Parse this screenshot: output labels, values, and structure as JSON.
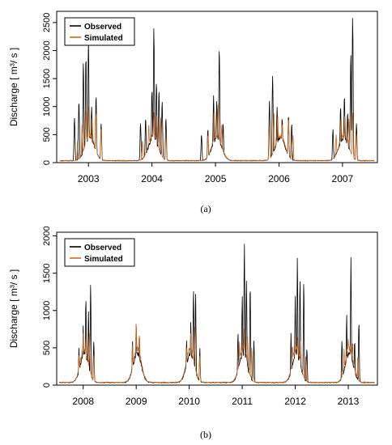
{
  "colors": {
    "observed": "#000000",
    "simulated": "#d2691e",
    "axis": "#000000"
  },
  "chart_data": [
    {
      "id": "a",
      "caption": "(a)",
      "type": "line",
      "ylabel": "Discharge [ m³/ s ]",
      "yticks": [
        0,
        500,
        1000,
        1500,
        2000,
        2500
      ],
      "ylim": [
        0,
        2700
      ],
      "xticks": [
        "2003",
        "2004",
        "2005",
        "2006",
        "2007"
      ],
      "xlim": [
        2002.5,
        2007.55
      ],
      "legend": {
        "entries": [
          "Observed",
          "Simulated"
        ],
        "placement": "top-left"
      },
      "series": [
        {
          "name": "Observed",
          "color": "#000000",
          "peaks": [
            [
              2002.78,
              800
            ],
            [
              2002.85,
              1100
            ],
            [
              2002.92,
              1800
            ],
            [
              2002.96,
              1900
            ],
            [
              2003.0,
              2200
            ],
            [
              2003.05,
              1000
            ],
            [
              2003.12,
              1200
            ],
            [
              2003.2,
              700
            ],
            [
              2003.82,
              700
            ],
            [
              2003.9,
              800
            ],
            [
              2004.0,
              1300
            ],
            [
              2004.03,
              2400
            ],
            [
              2004.07,
              1450
            ],
            [
              2004.11,
              1300
            ],
            [
              2004.16,
              1100
            ],
            [
              2004.22,
              800
            ],
            [
              2004.78,
              500
            ],
            [
              2004.88,
              600
            ],
            [
              2004.97,
              1200
            ],
            [
              2005.02,
              1100
            ],
            [
              2005.06,
              2050
            ],
            [
              2005.12,
              700
            ],
            [
              2005.85,
              1100
            ],
            [
              2005.9,
              1550
            ],
            [
              2005.97,
              1000
            ],
            [
              2006.05,
              800
            ],
            [
              2006.15,
              850
            ],
            [
              2006.2,
              700
            ],
            [
              2006.85,
              600
            ],
            [
              2006.97,
              1000
            ],
            [
              2007.03,
              1200
            ],
            [
              2007.08,
              900
            ],
            [
              2007.13,
              1950
            ],
            [
              2007.16,
              2600
            ],
            [
              2007.22,
              700
            ]
          ]
        },
        {
          "name": "Simulated",
          "color": "#d2691e",
          "peaks": [
            [
              2002.83,
              400
            ],
            [
              2002.9,
              700
            ],
            [
              2002.96,
              950
            ],
            [
              2003.0,
              1000
            ],
            [
              2003.06,
              800
            ],
            [
              2003.12,
              900
            ],
            [
              2003.2,
              600
            ],
            [
              2003.85,
              400
            ],
            [
              2003.95,
              700
            ],
            [
              2004.03,
              900
            ],
            [
              2004.08,
              850
            ],
            [
              2004.14,
              800
            ],
            [
              2004.22,
              500
            ],
            [
              2004.88,
              500
            ],
            [
              2004.98,
              900
            ],
            [
              2005.04,
              1050
            ],
            [
              2005.1,
              700
            ],
            [
              2005.85,
              700
            ],
            [
              2005.92,
              900
            ],
            [
              2005.98,
              850
            ],
            [
              2006.05,
              700
            ],
            [
              2006.15,
              800
            ],
            [
              2006.22,
              500
            ],
            [
              2006.9,
              500
            ],
            [
              2006.98,
              800
            ],
            [
              2007.04,
              850
            ],
            [
              2007.1,
              800
            ],
            [
              2007.16,
              900
            ],
            [
              2007.22,
              500
            ]
          ]
        }
      ]
    },
    {
      "id": "b",
      "caption": "(b)",
      "type": "line",
      "ylabel": "Discharge [ m³/ s ]",
      "yticks": [
        0,
        500,
        1000,
        1500,
        2000
      ],
      "ylim": [
        0,
        2050
      ],
      "xticks": [
        "2008",
        "2009",
        "2010",
        "2011",
        "2012",
        "2013"
      ],
      "xlim": [
        2007.5,
        2013.55
      ],
      "legend": {
        "entries": [
          "Observed",
          "Simulated"
        ],
        "placement": "top-left"
      },
      "series": [
        {
          "name": "Observed",
          "color": "#000000",
          "peaks": [
            [
              2007.92,
              500
            ],
            [
              2008.0,
              800
            ],
            [
              2008.05,
              1180
            ],
            [
              2008.1,
              1000
            ],
            [
              2008.14,
              1370
            ],
            [
              2008.2,
              600
            ],
            [
              2008.93,
              600
            ],
            [
              2009.0,
              850
            ],
            [
              2009.06,
              700
            ],
            [
              2009.95,
              600
            ],
            [
              2010.03,
              850
            ],
            [
              2010.08,
              1300
            ],
            [
              2010.12,
              1250
            ],
            [
              2010.2,
              500
            ],
            [
              2010.92,
              700
            ],
            [
              2011.0,
              1200
            ],
            [
              2011.04,
              1900
            ],
            [
              2011.08,
              1400
            ],
            [
              2011.15,
              1350
            ],
            [
              2011.22,
              600
            ],
            [
              2011.92,
              700
            ],
            [
              2012.0,
              1200
            ],
            [
              2012.04,
              1720
            ],
            [
              2012.09,
              1430
            ],
            [
              2012.16,
              1400
            ],
            [
              2012.22,
              500
            ],
            [
              2012.88,
              600
            ],
            [
              2012.97,
              950
            ],
            [
              2013.05,
              1720
            ],
            [
              2013.12,
              600
            ],
            [
              2013.2,
              850
            ]
          ]
        },
        {
          "name": "Simulated",
          "color": "#d2691e",
          "peaks": [
            [
              2007.92,
              400
            ],
            [
              2008.0,
              700
            ],
            [
              2008.05,
              650
            ],
            [
              2008.12,
              700
            ],
            [
              2008.2,
              400
            ],
            [
              2008.93,
              550
            ],
            [
              2009.0,
              850
            ],
            [
              2009.06,
              700
            ],
            [
              2009.95,
              500
            ],
            [
              2010.03,
              700
            ],
            [
              2010.1,
              800
            ],
            [
              2010.2,
              400
            ],
            [
              2010.95,
              600
            ],
            [
              2011.04,
              750
            ],
            [
              2011.1,
              650
            ],
            [
              2011.18,
              500
            ],
            [
              2011.95,
              550
            ],
            [
              2012.04,
              650
            ],
            [
              2012.1,
              600
            ],
            [
              2012.2,
              400
            ],
            [
              2012.92,
              500
            ],
            [
              2013.0,
              650
            ],
            [
              2013.08,
              600
            ],
            [
              2013.18,
              400
            ]
          ]
        }
      ]
    }
  ]
}
